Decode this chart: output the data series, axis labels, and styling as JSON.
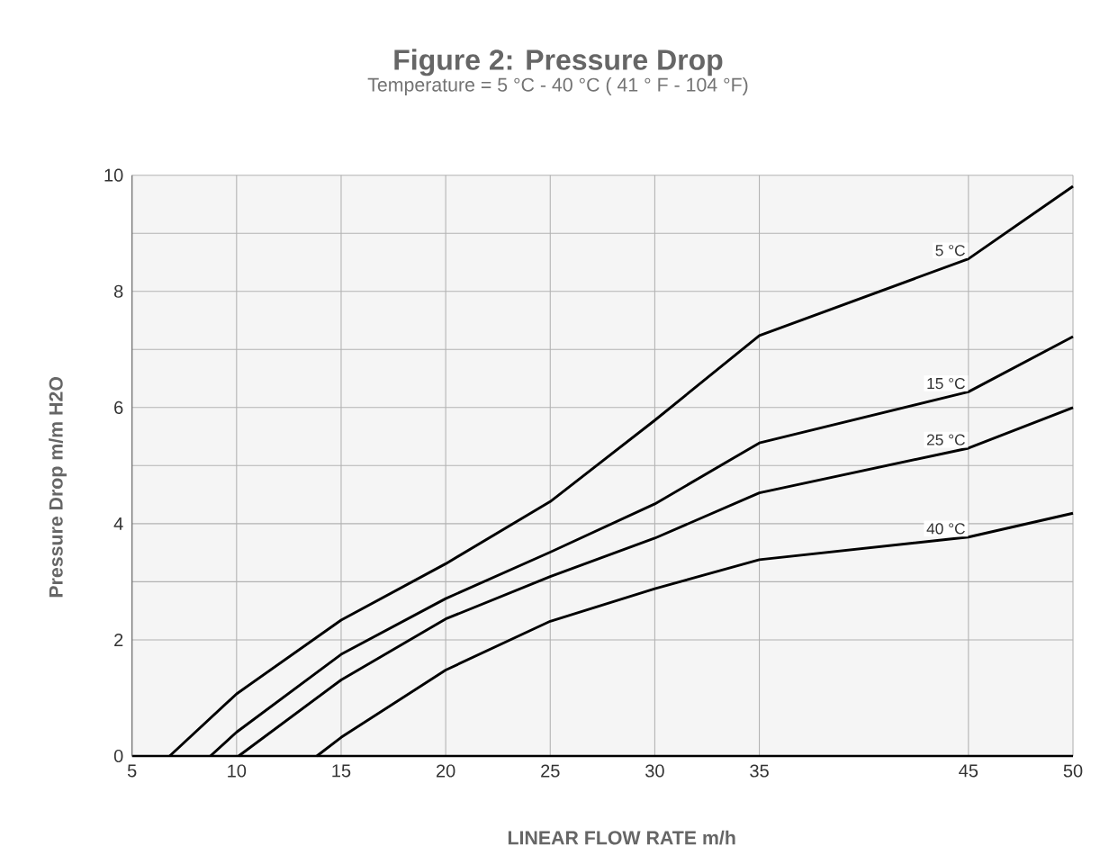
{
  "chart_data": {
    "type": "line",
    "title": "Figure 2: Pressure Drop",
    "subtitle": "Temperature = 5 °C - 40 °C ( 41 ° F - 104 °F)",
    "xlabel": "LINEAR FLOW RATE m/h",
    "ylabel": "Pressure Drop m/m H2O",
    "xlim": [
      5,
      50
    ],
    "xticks": [
      5,
      10,
      15,
      20,
      25,
      30,
      35,
      45,
      50
    ],
    "ylim": [
      0,
      10
    ],
    "yticks": [
      0,
      2,
      {
        "value": 3,
        "label": null
      },
      4,
      {
        "value": 5,
        "label": null
      },
      6,
      {
        "value": 7,
        "label": null
      },
      8,
      {
        "value": 9,
        "label": null
      },
      10
    ],
    "grid": true,
    "marker": "none",
    "line_style": "solid",
    "series": [
      {
        "name": "5 °C",
        "color": "#000000",
        "x": [
          6.8,
          10,
          15,
          20,
          25,
          30,
          35,
          45,
          50
        ],
        "values": [
          0,
          1.07,
          2.34,
          3.31,
          4.38,
          5.78,
          7.24,
          8.56,
          9.81
        ]
      },
      {
        "name": "15 °C",
        "color": "#000000",
        "x": [
          8.75,
          10,
          15,
          20,
          25,
          30,
          35,
          45,
          50
        ],
        "values": [
          0,
          0.41,
          1.75,
          2.71,
          3.51,
          4.34,
          5.39,
          6.27,
          7.22
        ]
      },
      {
        "name": "25 °C",
        "color": "#000000",
        "x": [
          10.1,
          15,
          20,
          25,
          30,
          35,
          45,
          50
        ],
        "values": [
          0,
          1.31,
          2.36,
          3.09,
          3.75,
          4.53,
          5.3,
          6.0
        ]
      },
      {
        "name": "40 °C",
        "color": "#000000",
        "x": [
          13.84,
          15,
          20,
          25,
          30,
          35,
          45,
          50
        ],
        "values": [
          0,
          0.32,
          1.48,
          2.32,
          2.88,
          3.38,
          3.77,
          4.18
        ]
      }
    ]
  }
}
